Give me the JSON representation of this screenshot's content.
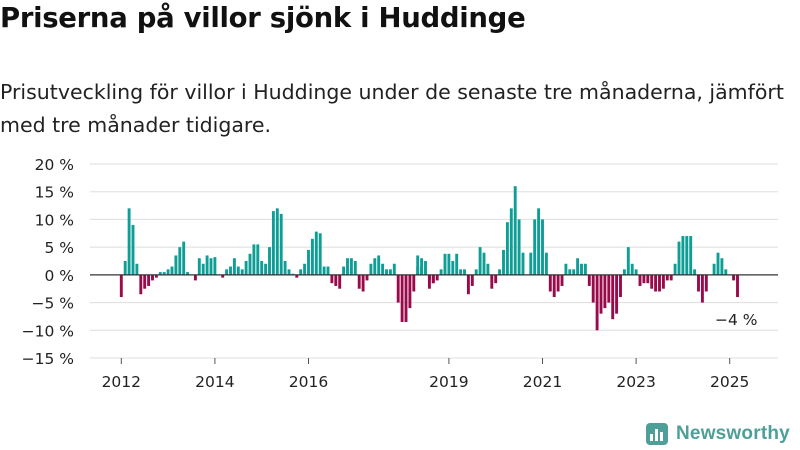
{
  "title": "Priserna på villor sjönk i Huddinge",
  "subtitle": "Prisutveckling för villor i Huddinge under de senaste tre månaderna, jämfört med tre månader tidigare.",
  "brand": "Newsworthy",
  "chart_data": {
    "type": "bar",
    "title": "Priserna på villor sjönk i Huddinge",
    "subtitle": "Prisutveckling för villor i Huddinge under de senaste tre månaderna, jämfört med tre månader tidigare.",
    "xlabel": "",
    "ylabel": "",
    "ylim": [
      -15,
      20
    ],
    "y_ticks": [
      20,
      15,
      10,
      5,
      0,
      -5,
      -10,
      -15
    ],
    "y_tick_labels": [
      "20 %",
      "15 %",
      "10 %",
      "5 %",
      "0 %",
      "−5 %",
      "−10 %",
      "−15 %"
    ],
    "x_ticks": [
      "2012",
      "2014",
      "2016",
      "2019",
      "2021",
      "2023",
      "2025"
    ],
    "grid": true,
    "legend": "none",
    "colors": {
      "positive": "#0f9e96",
      "negative": "#990a4b",
      "grid": "#dddddd",
      "zero_line": "#333333"
    },
    "last_label": "−4 %",
    "segments": [
      {
        "start": "2012-01",
        "values": [
          -4,
          2.5,
          12,
          9,
          2,
          -3.5,
          -2.5,
          -2,
          -1,
          -0.5,
          0.5,
          0.5,
          1,
          1.5,
          3.5,
          5,
          6,
          0.5,
          0,
          -1,
          3,
          2,
          3.5,
          3,
          3.2,
          0,
          -0.5,
          1,
          1.5,
          3,
          1.5,
          1,
          2.5,
          3.8,
          5.5,
          5.5,
          2.5,
          2,
          5,
          11.5,
          12,
          11,
          2.5,
          1,
          0.2,
          -0.5,
          1,
          2,
          4.5,
          6.5,
          7.8,
          7.5,
          1.5,
          1.5,
          -1.5,
          -2,
          -2.5,
          1.5,
          3,
          3,
          2.5,
          -2.5,
          -3,
          -1,
          2,
          3,
          3.5,
          2,
          1,
          1,
          2,
          -5,
          -8.5,
          -8.5,
          -6,
          -3,
          1.5,
          1.5,
          1,
          -2.5,
          -1.5
        ]
      },
      {
        "start": "2018-05",
        "values": [
          3.5,
          3,
          2.5,
          -1,
          -1.5,
          -1,
          1,
          3.8,
          3.8,
          2.5,
          3.8,
          1,
          1,
          -3.5,
          -2,
          1,
          5,
          4,
          2,
          -2.5,
          -1.5,
          1,
          4.5,
          9.5,
          12,
          16,
          10,
          4,
          0,
          4,
          10,
          12,
          10,
          4,
          -3,
          -4,
          -3,
          -2,
          2,
          1,
          1,
          3,
          2,
          2,
          -2,
          -5,
          -10,
          -7,
          -6,
          -5,
          -8,
          -7,
          -4,
          1,
          5,
          2,
          1,
          -2,
          -1.5,
          -1.5,
          -2.5,
          -3,
          -3,
          -2.5,
          -1,
          -1,
          2,
          6,
          7,
          7,
          7,
          1,
          -3,
          -5,
          -3,
          0,
          2,
          4,
          3,
          1,
          0,
          -1,
          -4
        ]
      }
    ]
  }
}
